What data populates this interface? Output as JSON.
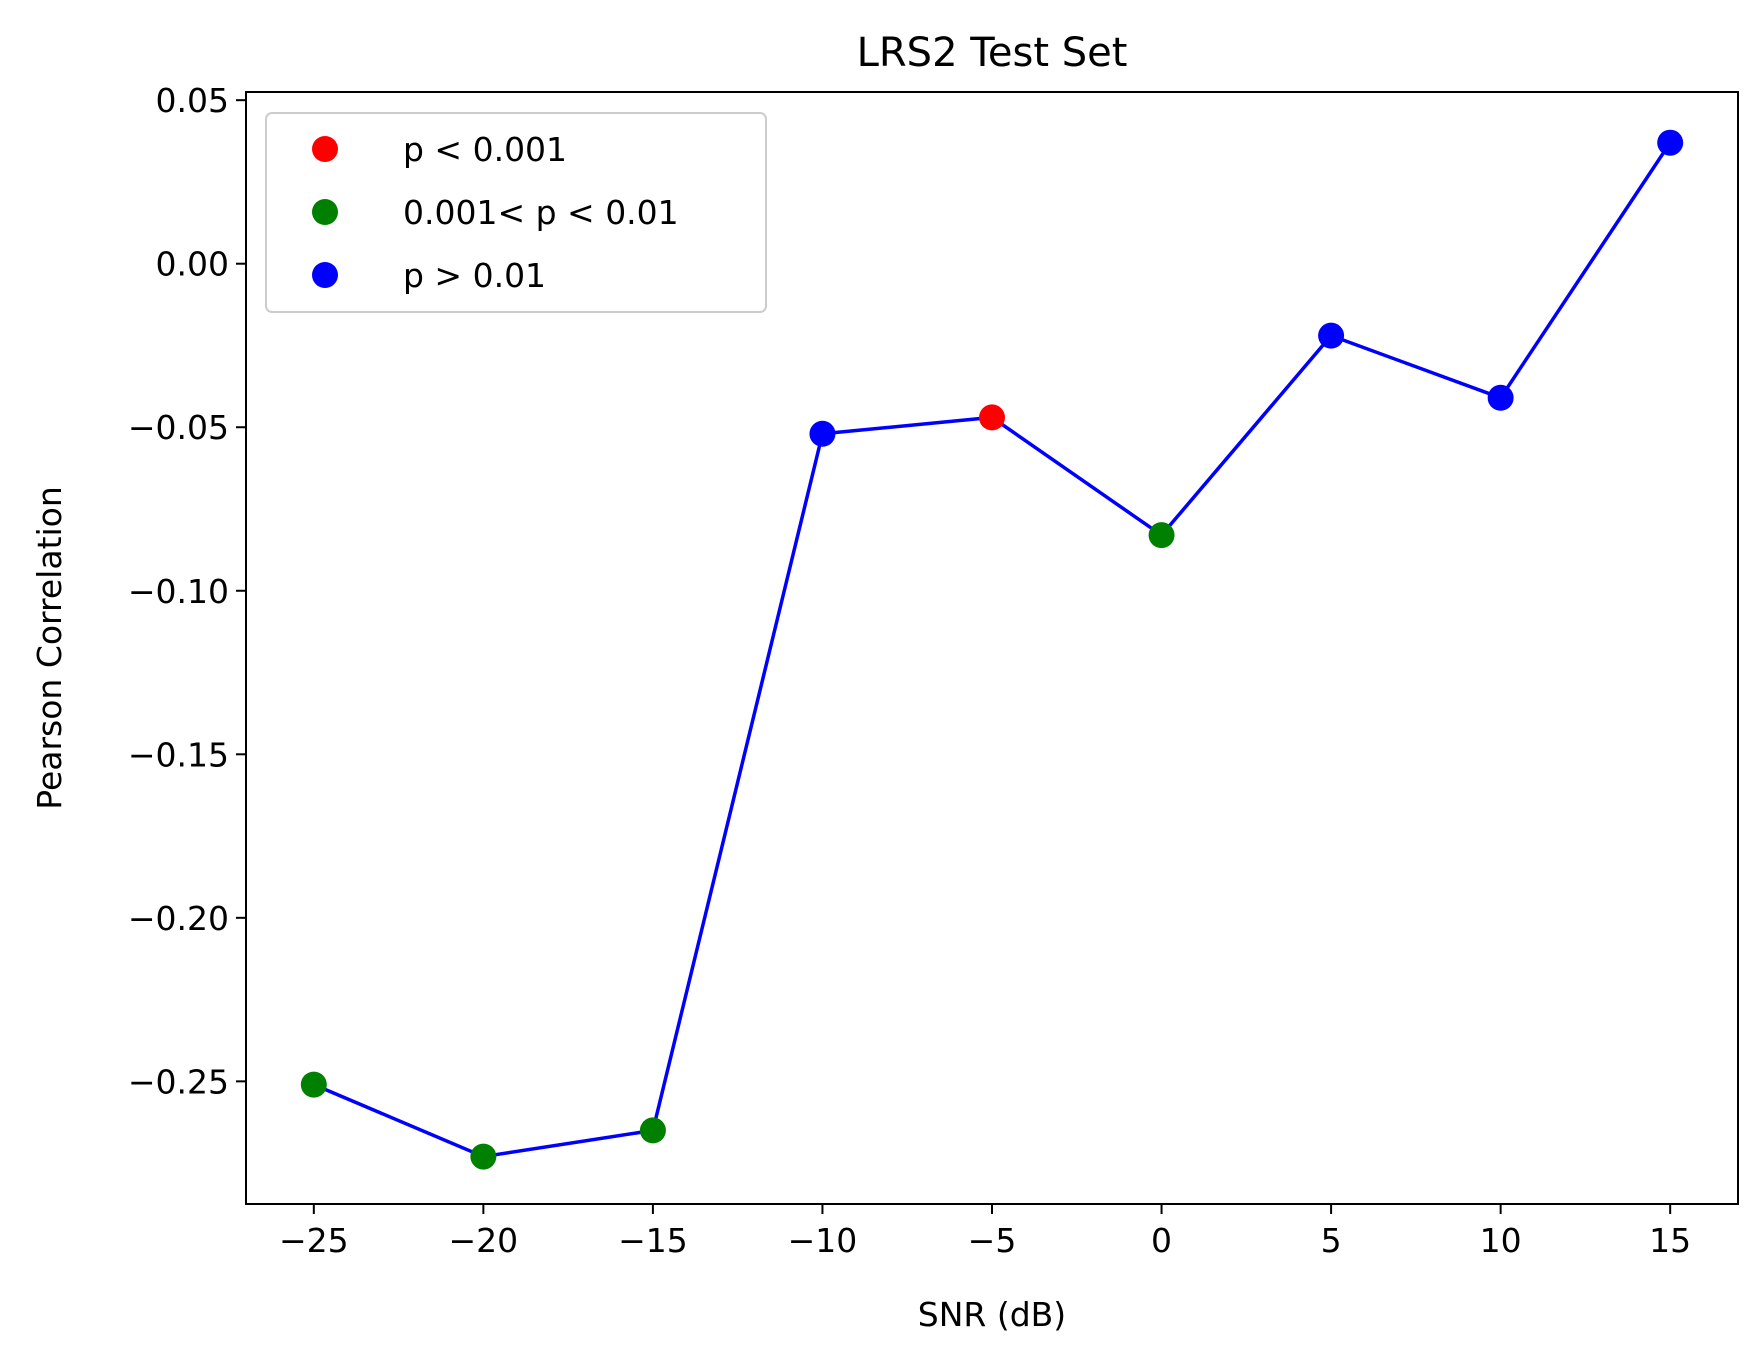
{
  "chart_data": {
    "type": "line",
    "title": "LRS2 Test Set",
    "xlabel": "SNR (dB)",
    "ylabel": "Pearson Correlation",
    "xlim": [
      -27,
      17
    ],
    "ylim": [
      -0.2875,
      0.0525
    ],
    "x_ticks": [
      -25,
      -20,
      -15,
      -10,
      -5,
      0,
      5,
      10,
      15
    ],
    "x_tick_labels": [
      "−25",
      "−20",
      "−15",
      "−10",
      "−5",
      "0",
      "5",
      "10",
      "15"
    ],
    "y_ticks": [
      0.05,
      0.0,
      -0.05,
      -0.1,
      -0.15,
      -0.2,
      -0.25
    ],
    "y_tick_labels": [
      "0.05",
      "0.00",
      "−0.05",
      "−0.10",
      "−0.15",
      "−0.20",
      "−0.25"
    ],
    "grid": false,
    "line_color": "#0000ff",
    "series": [
      {
        "x": [
          -25,
          -20,
          -15,
          -10,
          -5,
          0,
          5,
          10,
          15
        ],
        "y": [
          -0.251,
          -0.273,
          -0.265,
          -0.052,
          -0.047,
          -0.083,
          -0.022,
          -0.041,
          0.037
        ],
        "significance": [
          "mid",
          "mid",
          "mid",
          "high",
          "low",
          "mid",
          "high",
          "high",
          "high"
        ]
      }
    ],
    "legend": {
      "position": "top-left",
      "entries": [
        {
          "key": "low",
          "label": "p < 0.001",
          "color": "#ff0000"
        },
        {
          "key": "mid",
          "label": "0.001< p < 0.01",
          "color": "#008000"
        },
        {
          "key": "high",
          "label": "p > 0.01",
          "color": "#0000ff"
        }
      ]
    }
  }
}
